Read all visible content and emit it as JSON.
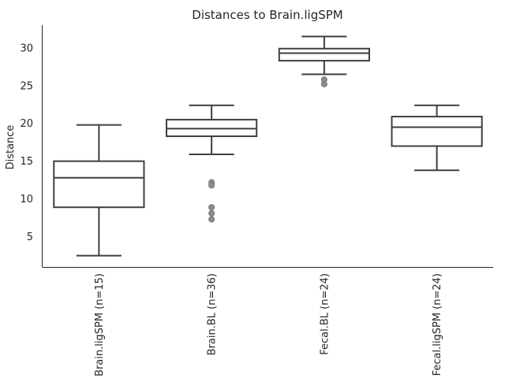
{
  "chart_data": {
    "type": "box",
    "title": "Distances to Brain.ligSPM",
    "xlabel": "",
    "ylabel": "Distance",
    "ylim": [
      1.0,
      33.0
    ],
    "yticks": [
      5,
      10,
      15,
      20,
      25,
      30
    ],
    "grid": false,
    "legend": "none",
    "categories": [
      "Brain.ligSPM (n=15)",
      "Brain.BL (n=36)",
      "Fecal.BL (n=24)",
      "Fecal.ligSPM (n=24)"
    ],
    "boxes": [
      {
        "whisker_low": 2.5,
        "q1": 8.9,
        "median": 12.8,
        "q3": 15.0,
        "whisker_high": 19.8,
        "outliers": []
      },
      {
        "whisker_low": 15.9,
        "q1": 18.3,
        "median": 19.3,
        "q3": 20.5,
        "whisker_high": 22.4,
        "outliers": [
          12.2,
          11.8,
          8.9,
          8.1,
          7.3
        ]
      },
      {
        "whisker_low": 26.5,
        "q1": 28.3,
        "median": 29.3,
        "q3": 29.9,
        "whisker_high": 31.5,
        "outliers": [
          25.8,
          25.2
        ]
      },
      {
        "whisker_low": 13.8,
        "q1": 17.0,
        "median": 19.5,
        "q3": 20.9,
        "whisker_high": 22.4,
        "outliers": []
      }
    ],
    "colors": {
      "line": "#3f3f3f",
      "box_fill": "#ffffff",
      "outlier": "#8c8c8c",
      "text": "#262626"
    }
  }
}
